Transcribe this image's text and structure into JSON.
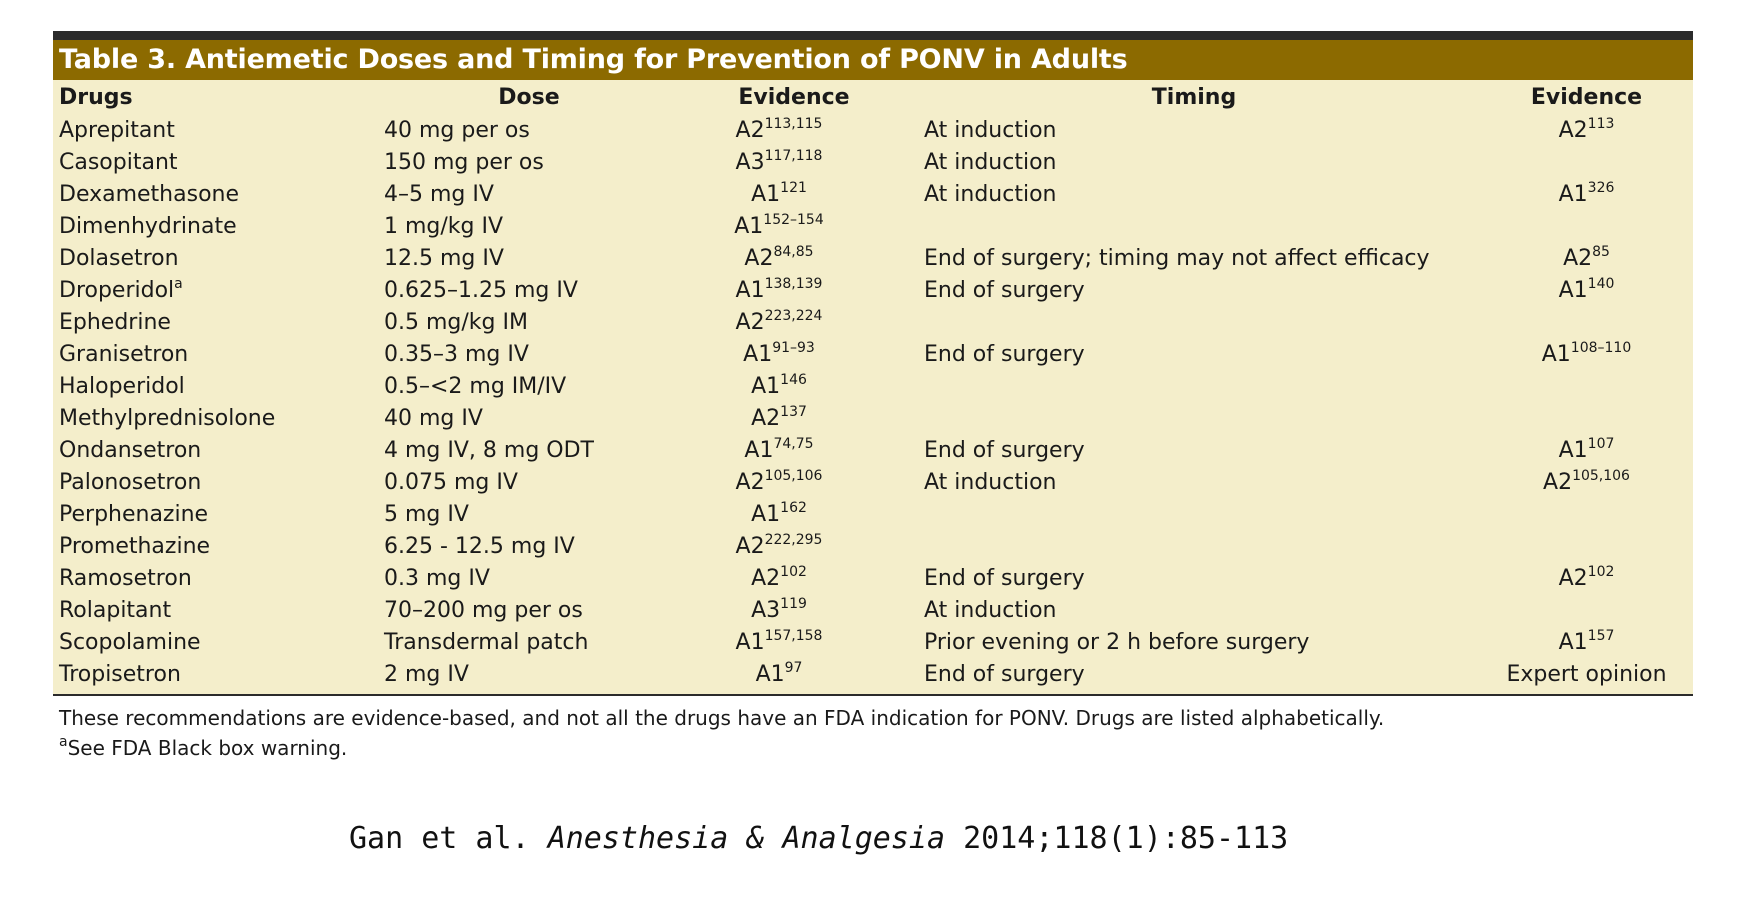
{
  "title": "Table 3.  Antiemetic Doses and Timing for Prevention of PONV in Adults",
  "headers": {
    "drugs": "Drugs",
    "dose": "Dose",
    "evidence1": "Evidence",
    "timing": "Timing",
    "evidence2": "Evidence"
  },
  "rows": [
    {
      "drug": "Aprepitant",
      "drug_sup": "",
      "dose": "40 mg per os",
      "ev1": "A2",
      "ev1_sup": "113,115",
      "timing": "At induction",
      "ev2": "A2",
      "ev2_sup": "113"
    },
    {
      "drug": "Casopitant",
      "drug_sup": "",
      "dose": "150 mg per os",
      "ev1": "A3",
      "ev1_sup": "117,118",
      "timing": "At induction",
      "ev2": "",
      "ev2_sup": ""
    },
    {
      "drug": "Dexamethasone",
      "drug_sup": "",
      "dose": "4–5 mg IV",
      "ev1": "A1",
      "ev1_sup": "121",
      "timing": "At induction",
      "ev2": "A1",
      "ev2_sup": "326"
    },
    {
      "drug": "Dimenhydrinate",
      "drug_sup": "",
      "dose": "1 mg/kg IV",
      "ev1": "A1",
      "ev1_sup": "152–154",
      "timing": "",
      "ev2": "",
      "ev2_sup": ""
    },
    {
      "drug": "Dolasetron",
      "drug_sup": "",
      "dose": "12.5 mg IV",
      "ev1": "A2",
      "ev1_sup": "84,85",
      "timing": "End of surgery; timing may not affect efficacy",
      "ev2": "A2",
      "ev2_sup": "85"
    },
    {
      "drug": "Droperidol",
      "drug_sup": "a",
      "dose": "0.625–1.25 mg IV",
      "ev1": "A1",
      "ev1_sup": "138,139",
      "timing": "End of surgery",
      "ev2": "A1",
      "ev2_sup": "140"
    },
    {
      "drug": "Ephedrine",
      "drug_sup": "",
      "dose": "0.5 mg/kg IM",
      "ev1": "A2",
      "ev1_sup": "223,224",
      "timing": "",
      "ev2": "",
      "ev2_sup": ""
    },
    {
      "drug": "Granisetron",
      "drug_sup": "",
      "dose": "0.35–3 mg IV",
      "ev1": "A1",
      "ev1_sup": "91–93",
      "timing": "End of surgery",
      "ev2": "A1",
      "ev2_sup": "108–110"
    },
    {
      "drug": "Haloperidol",
      "drug_sup": "",
      "dose": "0.5–<2 mg IM/IV",
      "ev1": "A1",
      "ev1_sup": "146",
      "timing": "",
      "ev2": "",
      "ev2_sup": ""
    },
    {
      "drug": "Methylprednisolone",
      "drug_sup": "",
      "dose": "40 mg IV",
      "ev1": "A2",
      "ev1_sup": "137",
      "timing": "",
      "ev2": "",
      "ev2_sup": ""
    },
    {
      "drug": "Ondansetron",
      "drug_sup": "",
      "dose": "4 mg IV, 8 mg ODT",
      "ev1": "A1",
      "ev1_sup": "74,75",
      "timing": "End of surgery",
      "ev2": "A1",
      "ev2_sup": "107"
    },
    {
      "drug": "Palonosetron",
      "drug_sup": "",
      "dose": "0.075 mg IV",
      "ev1": "A2",
      "ev1_sup": "105,106",
      "timing": "At induction",
      "ev2": "A2",
      "ev2_sup": "105,106"
    },
    {
      "drug": "Perphenazine",
      "drug_sup": "",
      "dose": "5 mg IV",
      "ev1": "A1",
      "ev1_sup": "162",
      "timing": "",
      "ev2": "",
      "ev2_sup": ""
    },
    {
      "drug": "Promethazine",
      "drug_sup": "",
      "dose": "6.25 - 12.5 mg IV",
      "ev1": "A2",
      "ev1_sup": "222,295",
      "timing": "",
      "ev2": "",
      "ev2_sup": ""
    },
    {
      "drug": "Ramosetron",
      "drug_sup": "",
      "dose": "0.3 mg IV",
      "ev1": "A2",
      "ev1_sup": "102",
      "timing": "End of surgery",
      "ev2": "A2",
      "ev2_sup": "102"
    },
    {
      "drug": "Rolapitant",
      "drug_sup": "",
      "dose": "70–200 mg per os",
      "ev1": "A3",
      "ev1_sup": "119",
      "timing": "At induction",
      "ev2": "",
      "ev2_sup": ""
    },
    {
      "drug": "Scopolamine",
      "drug_sup": "",
      "dose": "Transdermal patch",
      "ev1": "A1",
      "ev1_sup": "157,158",
      "timing": "Prior evening or 2 h before surgery",
      "ev2": "A1",
      "ev2_sup": "157"
    },
    {
      "drug": "Tropisetron",
      "drug_sup": "",
      "dose": "2 mg IV",
      "ev1": "A1",
      "ev1_sup": "97",
      "timing": "End of surgery",
      "ev2": "Expert opinion",
      "ev2_sup": ""
    }
  ],
  "footnotes": {
    "note1": "These recommendations are evidence-based, and not all the drugs have an FDA indication for PONV. Drugs are listed alphabetically.",
    "note2_marker": "a",
    "note2": "See FDA Black box warning."
  },
  "citation": {
    "authors": "Gan et al. ",
    "journal": "Anesthesia & Analgesia",
    "ref": " 2014;118(1):85-113"
  },
  "colors": {
    "title_bar": "#8c6a00",
    "body_background": "#f4eecb",
    "rule": "#2b2b2b"
  }
}
